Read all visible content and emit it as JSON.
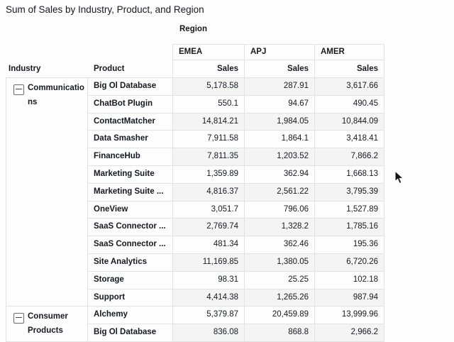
{
  "title": "Sum of Sales by Industry, Product, and Region",
  "pivot": {
    "column_dimension_label": "Region",
    "row_headers": {
      "industry": "Industry",
      "product": "Product"
    },
    "measure_label": "Sales",
    "columns": [
      "EMEA",
      "APJ",
      "AMER"
    ],
    "groups": [
      {
        "industry": "Communications",
        "collapse_icon": "minus-square-icon",
        "rows": [
          {
            "product": "Big Ol Database",
            "values": [
              "5,178.58",
              "287.91",
              "3,617.66"
            ]
          },
          {
            "product": "ChatBot Plugin",
            "values": [
              "550.1",
              "94.67",
              "490.45"
            ]
          },
          {
            "product": "ContactMatcher",
            "values": [
              "14,814.21",
              "1,984.05",
              "10,844.09"
            ]
          },
          {
            "product": "Data Smasher",
            "values": [
              "7,911.58",
              "1,864.1",
              "3,418.41"
            ]
          },
          {
            "product": "FinanceHub",
            "values": [
              "7,811.35",
              "1,203.52",
              "7,866.2"
            ]
          },
          {
            "product": "Marketing Suite",
            "values": [
              "1,359.89",
              "362.94",
              "1,668.13"
            ]
          },
          {
            "product": "Marketing Suite ...",
            "values": [
              "4,816.37",
              "2,561.22",
              "3,795.39"
            ]
          },
          {
            "product": "OneView",
            "values": [
              "3,051.7",
              "796.06",
              "1,527.89"
            ]
          },
          {
            "product": "SaaS Connector ...",
            "values": [
              "2,769.74",
              "1,328.2",
              "1,785.16"
            ]
          },
          {
            "product": "SaaS Connector ...",
            "values": [
              "481.34",
              "362.46",
              "195.36"
            ]
          },
          {
            "product": "Site Analytics",
            "values": [
              "11,169.85",
              "1,380.05",
              "6,720.26"
            ]
          },
          {
            "product": "Storage",
            "values": [
              "98.31",
              "25.25",
              "102.18"
            ]
          },
          {
            "product": "Support",
            "values": [
              "4,414.38",
              "1,265.26",
              "987.94"
            ]
          }
        ]
      },
      {
        "industry": "Consumer Products",
        "collapse_icon": "minus-square-icon",
        "rows": [
          {
            "product": "Alchemy",
            "values": [
              "5,379.87",
              "20,459.89",
              "13,999.96"
            ]
          },
          {
            "product": "Big Ol Database",
            "values": [
              "836.08",
              "868.8",
              "2,966.2"
            ]
          }
        ]
      }
    ]
  },
  "cursor_icon": "mouse-pointer-icon",
  "colors": {
    "background": "#fdfdfd",
    "row_alt": "#f4f4f4",
    "border": "#e2e2e2",
    "text": "#16191f"
  }
}
